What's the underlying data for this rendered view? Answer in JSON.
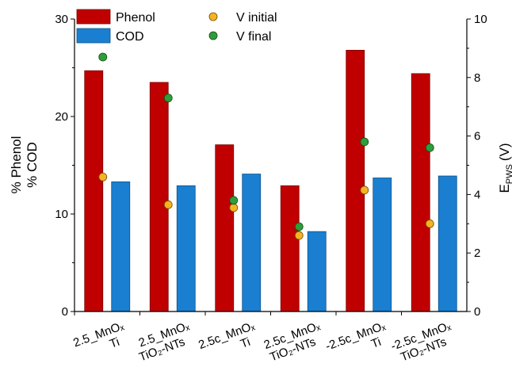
{
  "chart_data": {
    "type": "bar",
    "categories": [
      {
        "line1": "2.5_MnOₓ",
        "line2": "Ti"
      },
      {
        "line1": "2.5_MnOₓ",
        "line2": "TiO₂-NTs"
      },
      {
        "line1": "2.5c_MnOₓ",
        "line2": "Ti"
      },
      {
        "line1": "2.5c_MnOₓ",
        "line2": "TiO₂-NTs"
      },
      {
        "line1": "-2.5c_MnOₓ",
        "line2": "Ti"
      },
      {
        "line1": "-2.5c_MnOₓ",
        "line2": "TiO₂-NTs"
      }
    ],
    "series": [
      {
        "name": "Phenol",
        "kind": "bar",
        "axis": "left",
        "color": "#c00000",
        "values": [
          24.7,
          23.5,
          17.1,
          12.9,
          26.8,
          24.4
        ]
      },
      {
        "name": "COD",
        "kind": "bar",
        "axis": "left",
        "color": "#1a7fd0",
        "values": [
          13.3,
          12.9,
          14.1,
          8.2,
          13.7,
          13.9
        ]
      },
      {
        "name": "V initial",
        "kind": "scatter",
        "axis": "right",
        "color": "#f5b324",
        "values": [
          4.6,
          3.65,
          3.55,
          2.6,
          4.15,
          3.0
        ]
      },
      {
        "name": "V final",
        "kind": "scatter",
        "axis": "right",
        "color": "#2e9e3a",
        "values": [
          8.7,
          7.3,
          3.8,
          2.9,
          5.8,
          5.6
        ]
      }
    ],
    "ylabel_left": [
      "% Phenol",
      "% COD"
    ],
    "ylabel_right": "E",
    "ylabel_right_sub": "PWS",
    "ylabel_right_unit": "(V)",
    "ylim_left": [
      0,
      30
    ],
    "yticks_left": [
      0,
      10,
      20,
      30
    ],
    "ylim_right": [
      0,
      10
    ],
    "yticks_right": [
      0,
      2,
      4,
      6,
      8,
      10
    ],
    "grid": false,
    "legend": "top-left"
  }
}
